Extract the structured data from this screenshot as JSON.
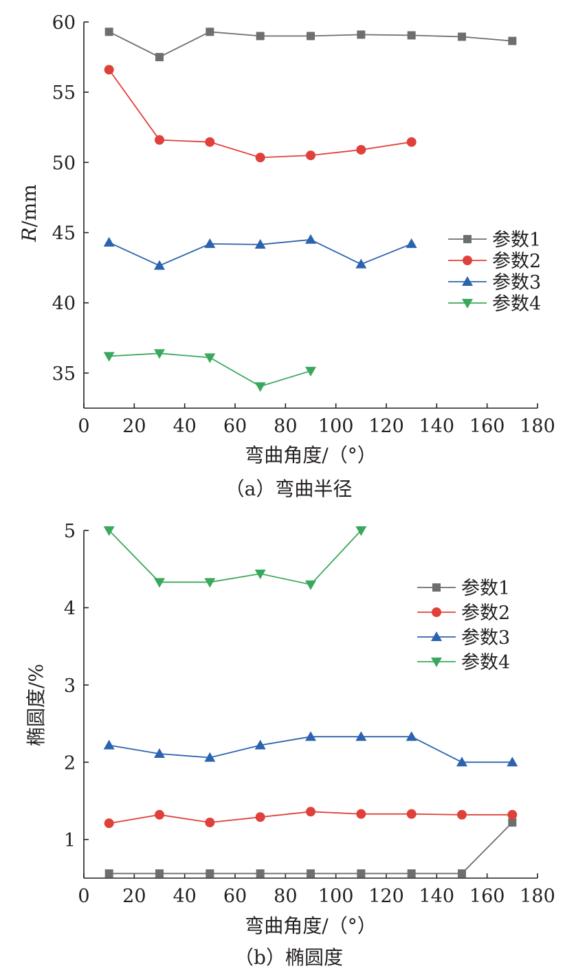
{
  "colors": {
    "series1": "#6d6e70",
    "series2": "#e0403a",
    "series3": "#2b63ae",
    "series4": "#3aa85c",
    "axis": "#231f20"
  },
  "chart_data": [
    {
      "type": "line",
      "caption": "（a）弯曲半径",
      "xlabel": "弯曲角度/（°）",
      "ylabel_italic": "R",
      "ylabel_unit": "/mm",
      "xlim": [
        0,
        180
      ],
      "ylim": [
        32.5,
        60
      ],
      "xticks": [
        0,
        20,
        40,
        60,
        80,
        100,
        120,
        140,
        160,
        180
      ],
      "yticks": [
        35,
        40,
        45,
        50,
        55,
        60
      ],
      "grid": false,
      "legend_position": "right-middle",
      "series": [
        {
          "name": "参数1",
          "marker": "square",
          "x": [
            10,
            30,
            50,
            70,
            90,
            110,
            130,
            150,
            170
          ],
          "values": [
            59.3,
            57.5,
            59.3,
            59.0,
            59.0,
            59.1,
            59.05,
            58.95,
            58.65
          ]
        },
        {
          "name": "参数2",
          "marker": "circle",
          "x": [
            10,
            30,
            50,
            70,
            90,
            110,
            130
          ],
          "values": [
            56.6,
            51.6,
            51.45,
            50.35,
            50.5,
            50.9,
            51.45
          ]
        },
        {
          "name": "参数3",
          "marker": "triangle-up",
          "x": [
            10,
            30,
            50,
            70,
            90,
            110,
            130
          ],
          "values": [
            44.3,
            42.65,
            44.2,
            44.15,
            44.5,
            42.75,
            44.2
          ]
        },
        {
          "name": "参数4",
          "marker": "triangle-down",
          "x": [
            10,
            30,
            50,
            70,
            90
          ],
          "values": [
            36.2,
            36.4,
            36.1,
            34.05,
            35.15
          ]
        }
      ]
    },
    {
      "type": "line",
      "caption": "（b）椭圆度",
      "xlabel": "弯曲角度/（°）",
      "ylabel": "椭圆度/%",
      "xlim": [
        0,
        180
      ],
      "ylim": [
        0.5,
        5
      ],
      "xticks": [
        0,
        20,
        40,
        60,
        80,
        100,
        120,
        140,
        160,
        180
      ],
      "yticks": [
        1,
        2,
        3,
        4,
        5
      ],
      "grid": false,
      "legend_position": "right-upper",
      "series": [
        {
          "name": "参数1",
          "marker": "square",
          "x": [
            10,
            30,
            50,
            70,
            90,
            110,
            130,
            150,
            170
          ],
          "values": [
            0.56,
            0.56,
            0.56,
            0.56,
            0.56,
            0.56,
            0.56,
            0.56,
            1.22
          ]
        },
        {
          "name": "参数2",
          "marker": "circle",
          "x": [
            10,
            30,
            50,
            70,
            90,
            110,
            130,
            150,
            170
          ],
          "values": [
            1.21,
            1.32,
            1.22,
            1.29,
            1.36,
            1.33,
            1.33,
            1.32,
            1.32
          ]
        },
        {
          "name": "参数3",
          "marker": "triangle-up",
          "x": [
            10,
            30,
            50,
            70,
            90,
            110,
            130,
            150,
            170
          ],
          "values": [
            2.22,
            2.11,
            2.06,
            2.22,
            2.33,
            2.33,
            2.33,
            2.0,
            2.0
          ]
        },
        {
          "name": "参数4",
          "marker": "triangle-down",
          "x": [
            10,
            30,
            50,
            70,
            90,
            110
          ],
          "values": [
            5.0,
            4.33,
            4.33,
            4.44,
            4.3,
            5.0
          ]
        }
      ]
    }
  ]
}
